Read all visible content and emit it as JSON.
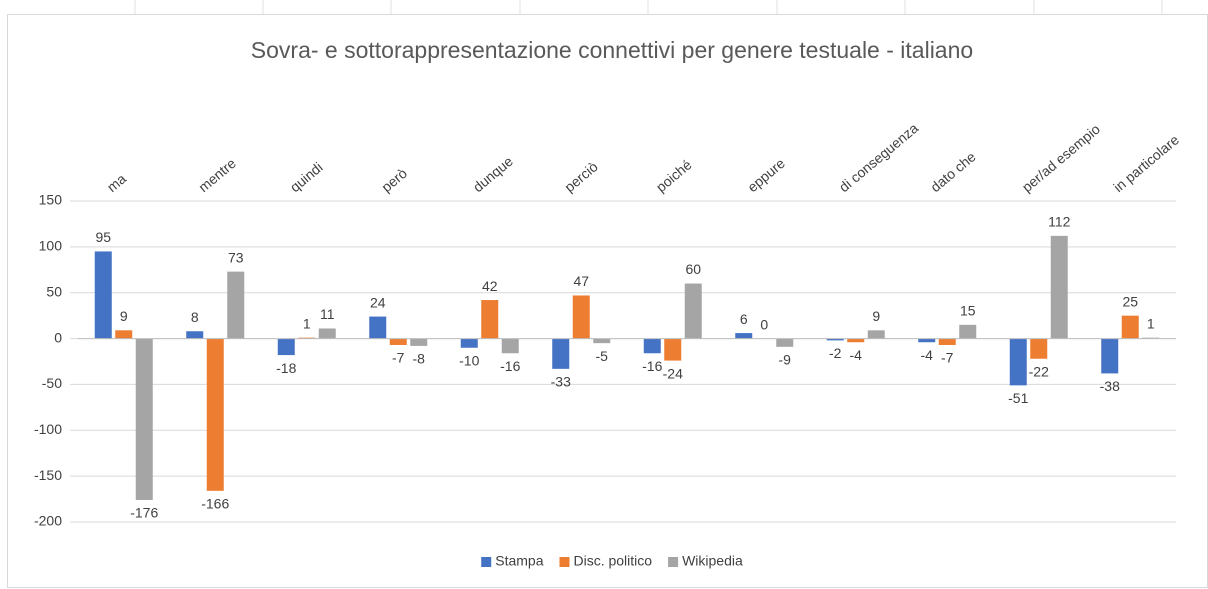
{
  "chart_data": {
    "type": "bar",
    "title": "Sovra- e sottorappresentazione connettivi per genere testuale - italiano",
    "categories": [
      "ma",
      "mentre",
      "quindi",
      "però",
      "dunque",
      "perciò",
      "poiché",
      "eppure",
      "di conseguenza",
      "dato che",
      "per/ad esempio",
      "in particolare"
    ],
    "series": [
      {
        "name": "Stampa",
        "color": "#4472c4",
        "values": [
          95,
          8,
          -18,
          24,
          -10,
          -33,
          -16,
          6,
          -2,
          -4,
          -51,
          -38
        ]
      },
      {
        "name": "Disc. politico",
        "color": "#ed7d31",
        "values": [
          9,
          -166,
          1,
          -7,
          42,
          47,
          -24,
          0,
          -4,
          -7,
          -22,
          25
        ]
      },
      {
        "name": "Wikipedia",
        "color": "#a5a5a5",
        "values": [
          -176,
          73,
          11,
          -8,
          -16,
          -5,
          60,
          -9,
          9,
          15,
          112,
          1
        ]
      }
    ],
    "ylim": [
      -200,
      150
    ],
    "yticks": [
      -200,
      -150,
      -100,
      -50,
      0,
      50,
      100,
      150
    ],
    "grid": true,
    "legend": "bottom"
  }
}
